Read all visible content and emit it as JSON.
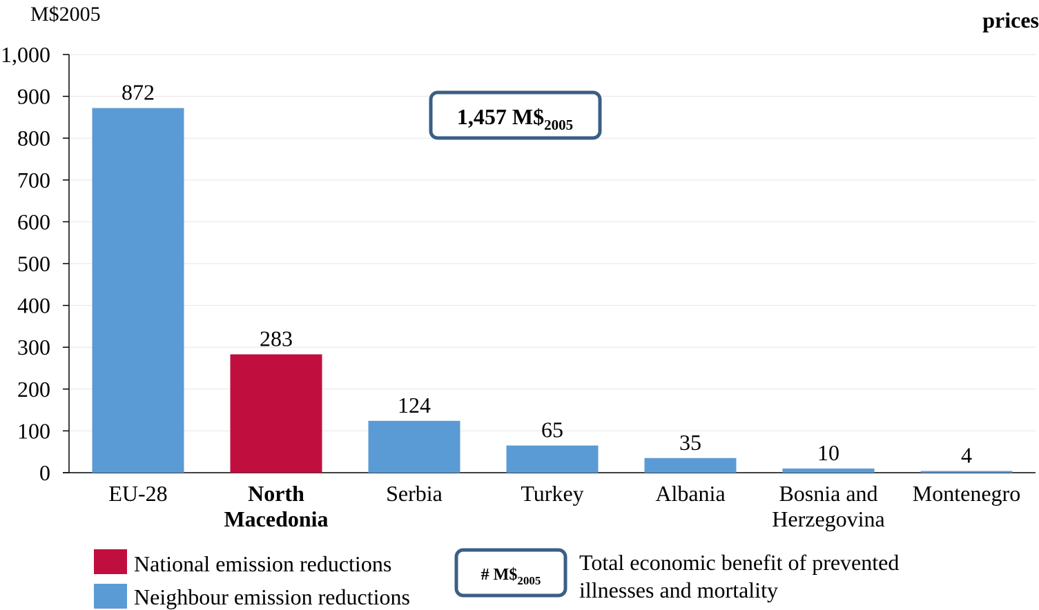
{
  "chart_data": {
    "type": "bar",
    "unit_label": "M$2005",
    "title_fragment": "prices",
    "categories": [
      "EU-28",
      "North Macedonia",
      "Serbia",
      "Turkey",
      "Albania",
      "Bosnia and Herzegovina",
      "Montenegro"
    ],
    "category_lines": [
      [
        "EU-28"
      ],
      [
        "North",
        "Macedonia"
      ],
      [
        "Serbia"
      ],
      [
        "Turkey"
      ],
      [
        "Albania"
      ],
      [
        "Bosnia and",
        "Herzegovina"
      ],
      [
        "Montenegro"
      ]
    ],
    "highlight_category": "North Macedonia",
    "values": [
      872,
      283,
      124,
      65,
      35,
      10,
      4
    ],
    "value_labels": [
      "872",
      "283",
      "124",
      "65",
      "35",
      "10",
      "4"
    ],
    "series_type": [
      "neighbour",
      "national",
      "neighbour",
      "neighbour",
      "neighbour",
      "neighbour",
      "neighbour"
    ],
    "ylim": [
      0,
      1000
    ],
    "yticks": [
      0,
      100,
      200,
      300,
      400,
      500,
      600,
      700,
      800,
      900,
      1000
    ],
    "ytick_labels": [
      "0",
      "100",
      "200",
      "300",
      "400",
      "500",
      "600",
      "700",
      "800",
      "900",
      "1,000"
    ],
    "grid": true,
    "total_box": {
      "value": "1,457 M$",
      "subscript": "2005"
    },
    "legend": {
      "placement": "bottom",
      "national": "National emission reductions",
      "neighbour": "Neighbour emission reductions",
      "total_symbol": "# M$",
      "total_symbol_subscript": "2005",
      "total_lines": [
        "Total economic benefit of prevented",
        "illnesses and mortality"
      ]
    },
    "colors": {
      "neighbour": "#5b9bd5",
      "national": "#c00f3f",
      "box_border": "#3b5f85",
      "grid": "#e6e6e6"
    }
  }
}
